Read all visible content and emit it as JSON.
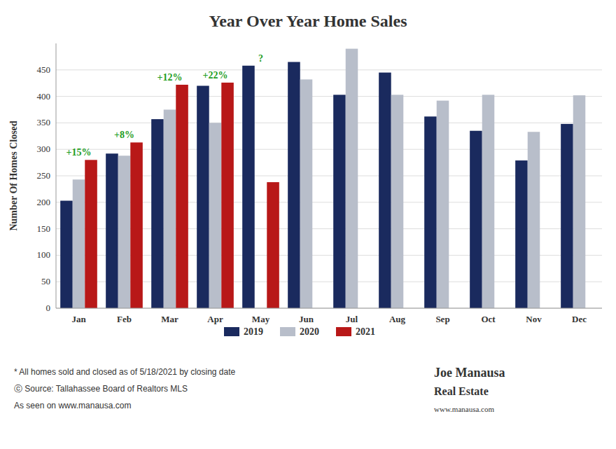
{
  "chart_data": {
    "type": "bar",
    "title": "Year Over Year Home Sales",
    "y_label": "Number Of Homes Closed",
    "categories": [
      "Jan",
      "Feb",
      "Mar",
      "Apr",
      "May",
      "Jun",
      "Jul",
      "Aug",
      "Sep",
      "Oct",
      "Nov",
      "Dec"
    ],
    "series": [
      {
        "name": "2019",
        "color": "#1a2a5e",
        "values": [
          203,
          292,
          357,
          420,
          458,
          465,
          403,
          445,
          362,
          335,
          279,
          348
        ]
      },
      {
        "name": "2020",
        "color": "#b8beca",
        "values": [
          243,
          288,
          375,
          350,
          0,
          432,
          490,
          403,
          392,
          403,
          333,
          402
        ]
      },
      {
        "name": "2021",
        "color": "#b81818",
        "values": [
          280,
          313,
          422,
          426,
          238,
          0,
          0,
          0,
          0,
          0,
          0,
          0
        ]
      }
    ],
    "ylim": [
      0,
      500
    ],
    "yticks": [
      0,
      50,
      100,
      150,
      200,
      250,
      300,
      350,
      400,
      450
    ],
    "grid": true,
    "legend": "bottom",
    "annotations": [
      "+15%",
      "+8%",
      "+12%",
      "+22%",
      "?"
    ],
    "footer": [
      "* All homes sold and closed as of 5/18/2021 by closing date",
      "ⓒ Source: Tallahassee Board of Realtors MLS",
      "As seen on www.manausa.com"
    ],
    "brand": [
      "Joe Manausa",
      "Real Estate",
      "www.manausa.com"
    ]
  }
}
